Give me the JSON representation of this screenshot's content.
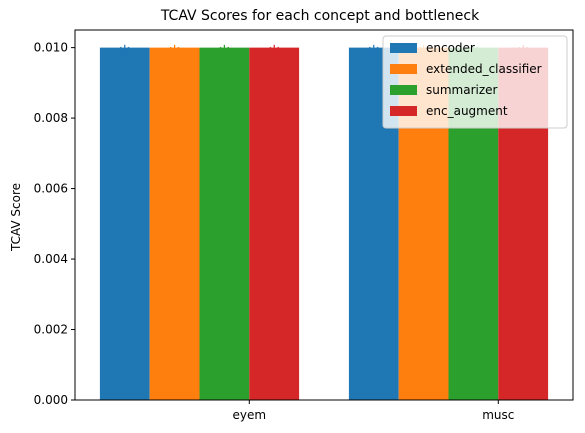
{
  "chart_data": {
    "type": "bar",
    "title": "TCAV Scores for each concept and bottleneck",
    "xlabel": "",
    "ylabel": "TCAV Score",
    "categories": [
      "eyem",
      "musc"
    ],
    "series": [
      {
        "name": "encoder",
        "color": "#1f77b4",
        "values": [
          0.01,
          0.01
        ]
      },
      {
        "name": "extended_classifier",
        "color": "#ff7f0e",
        "values": [
          0.01,
          0.01
        ]
      },
      {
        "name": "summarizer",
        "color": "#2ca02c",
        "values": [
          0.01,
          0.01
        ]
      },
      {
        "name": "enc_augment",
        "color": "#d62728",
        "values": [
          0.01,
          0.01
        ]
      }
    ],
    "ylim": [
      0,
      0.0105
    ],
    "yticks": [
      "0.000",
      "0.002",
      "0.004",
      "0.006",
      "0.008",
      "0.010"
    ],
    "ytick_values": [
      0,
      0.002,
      0.004,
      0.006,
      0.008,
      0.01
    ],
    "significance_marker": "*",
    "legend_position": "upper right",
    "grid": false
  }
}
